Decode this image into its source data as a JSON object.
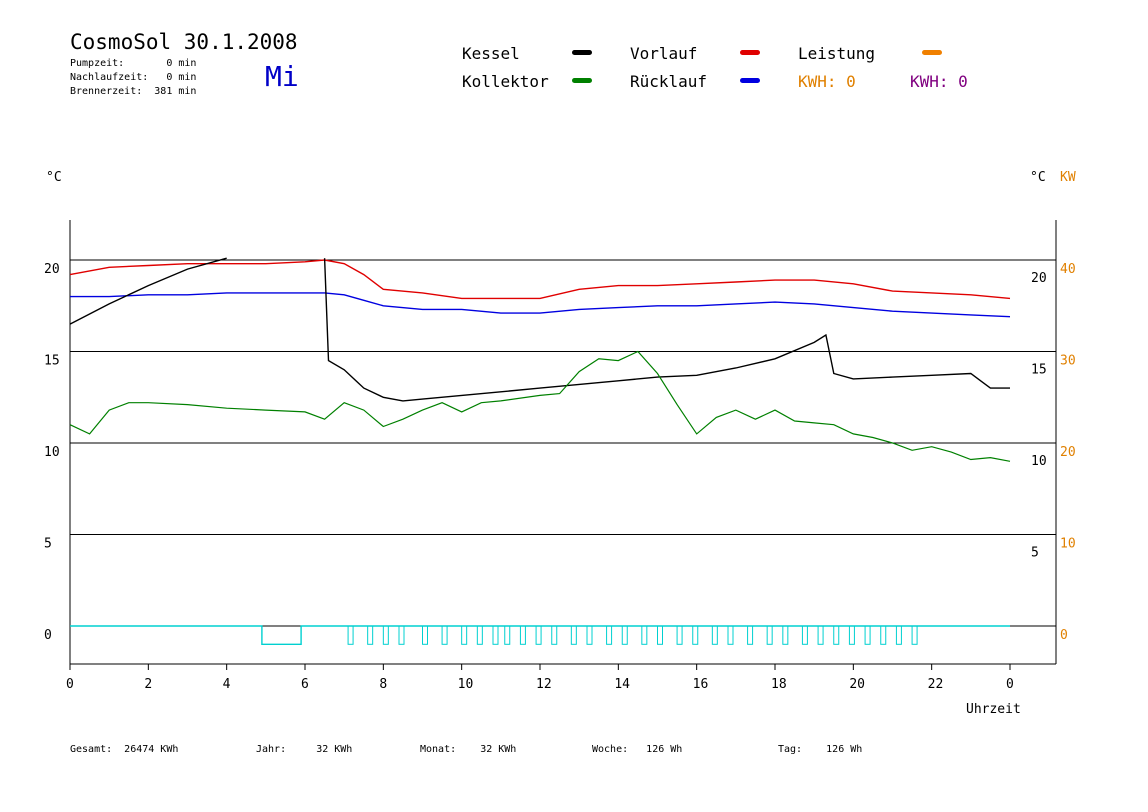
{
  "header": {
    "title": "CosmoSol 30.1.2008",
    "day": "Mi",
    "pump_time": "Pumpzeit:       0 min",
    "run_on_time": "Nachlaufzeit:   0 min",
    "burner_time": "Brennerzeit:  381 min"
  },
  "legend": {
    "kessel": "Kessel",
    "kollektor": "Kollektor",
    "vorlauf": "Vorlauf",
    "ruecklauf": "Rücklauf",
    "leistung": "Leistung",
    "kwh_1": "KWH: 0",
    "kwh_2": "KWH: 0",
    "colors": {
      "kessel": "#000000",
      "kollektor": "#008000",
      "vorlauf": "#e00000",
      "ruecklauf": "#0000e0",
      "leistung": "#f08000",
      "kwh_2": "#800080",
      "pump": "#00d0d0"
    }
  },
  "axes": {
    "left_unit": "°C",
    "right_unit": "°C",
    "right_unit_kw": "KW",
    "x_label": "Uhrzeit"
  },
  "footer": {
    "gesamt": "Gesamt:  26474 KWh",
    "jahr": "Jahr:     32 KWh",
    "monat": "Monat:    32 KWh",
    "woche": "Woche:   126 Wh",
    "tag": "Tag:    126 Wh"
  },
  "chart_data": {
    "type": "line",
    "x_label": "Uhrzeit",
    "x_ticks": [
      "0",
      "2",
      "4",
      "6",
      "8",
      "10",
      "12",
      "14",
      "16",
      "18",
      "20",
      "22",
      "0"
    ],
    "xlim": [
      0,
      24
    ],
    "left_ylim": [
      -2,
      22
    ],
    "left_ticks": [
      "20",
      "15",
      "10",
      "5",
      "0"
    ],
    "right_inner_ticks": [
      "20",
      "15",
      "10",
      "5"
    ],
    "right_kw_ticks": [
      "40",
      "30",
      "20",
      "10",
      "0"
    ],
    "grid": true,
    "series": [
      {
        "name": "Vorlauf",
        "color": "#e00000",
        "x": [
          0,
          1,
          2,
          3,
          4,
          5,
          6,
          6.5,
          7,
          7.5,
          8,
          9,
          10,
          11,
          12,
          13,
          14,
          15,
          16,
          17,
          18,
          19,
          20,
          21,
          22,
          23,
          24
        ],
        "y": [
          19.2,
          19.6,
          19.7,
          19.8,
          19.8,
          19.8,
          19.9,
          20.0,
          19.8,
          19.2,
          18.4,
          18.2,
          17.9,
          17.9,
          17.9,
          18.4,
          18.6,
          18.6,
          18.7,
          18.8,
          18.9,
          18.9,
          18.7,
          18.3,
          18.2,
          18.1,
          17.9
        ]
      },
      {
        "name": "Rücklauf",
        "color": "#0000e0",
        "x": [
          0,
          1,
          2,
          3,
          4,
          5,
          6,
          6.5,
          7,
          7.5,
          8,
          9,
          10,
          11,
          12,
          13,
          14,
          15,
          16,
          17,
          18,
          19,
          20,
          21,
          22,
          23,
          24
        ],
        "y": [
          18.0,
          18.0,
          18.1,
          18.1,
          18.2,
          18.2,
          18.2,
          18.2,
          18.1,
          17.8,
          17.5,
          17.3,
          17.3,
          17.1,
          17.1,
          17.3,
          17.4,
          17.5,
          17.5,
          17.6,
          17.7,
          17.6,
          17.4,
          17.2,
          17.1,
          17.0,
          16.9
        ]
      },
      {
        "name": "Kessel",
        "color": "#000000",
        "x": [
          0,
          1,
          2,
          3,
          4,
          5,
          6,
          6.4,
          6.5,
          6.6,
          7,
          7.5,
          8,
          8.5,
          9,
          10,
          11,
          12,
          13,
          14,
          15,
          16,
          17,
          18,
          19,
          19.3,
          19.5,
          20,
          21,
          22,
          23,
          23.5,
          24
        ],
        "y": [
          16.5,
          17.6,
          18.6,
          19.5,
          20.1,
          null,
          null,
          null,
          20.1,
          14.5,
          14.0,
          13.0,
          12.5,
          12.3,
          12.4,
          12.6,
          12.8,
          13.0,
          13.2,
          13.4,
          13.6,
          13.7,
          14.1,
          14.6,
          15.5,
          15.9,
          13.8,
          13.5,
          13.6,
          13.7,
          13.8,
          13.0,
          13.0
        ]
      },
      {
        "name": "Kollektor",
        "color": "#008000",
        "x": [
          0,
          0.5,
          1,
          1.5,
          2,
          3,
          4,
          5,
          6,
          6.5,
          7,
          7.5,
          8,
          8.5,
          9,
          9.5,
          10,
          10.5,
          11,
          12,
          12.5,
          13,
          13.5,
          14,
          14.5,
          15,
          15.5,
          16,
          16.5,
          17,
          17.5,
          18,
          18.5,
          19,
          19.5,
          20,
          20.5,
          21,
          21.5,
          22,
          22.5,
          23,
          23.5,
          24
        ],
        "y": [
          11.0,
          10.5,
          11.8,
          12.2,
          12.2,
          12.1,
          11.9,
          11.8,
          11.7,
          11.3,
          12.2,
          11.8,
          10.9,
          11.3,
          11.8,
          12.2,
          11.7,
          12.2,
          12.3,
          12.6,
          12.7,
          13.9,
          14.6,
          14.5,
          15.0,
          13.8,
          12.1,
          10.5,
          11.4,
          11.8,
          11.3,
          11.8,
          11.2,
          11.1,
          11.0,
          10.5,
          10.3,
          10.0,
          9.6,
          9.8,
          9.5,
          9.1,
          9.2,
          9.0
        ]
      },
      {
        "name": "Leistung",
        "color": "#00d0d0",
        "x": [
          0,
          4.9,
          4.9,
          5.9,
          5.9,
          24
        ],
        "y": [
          0,
          0,
          -1,
          -1,
          0,
          0
        ]
      }
    ]
  }
}
